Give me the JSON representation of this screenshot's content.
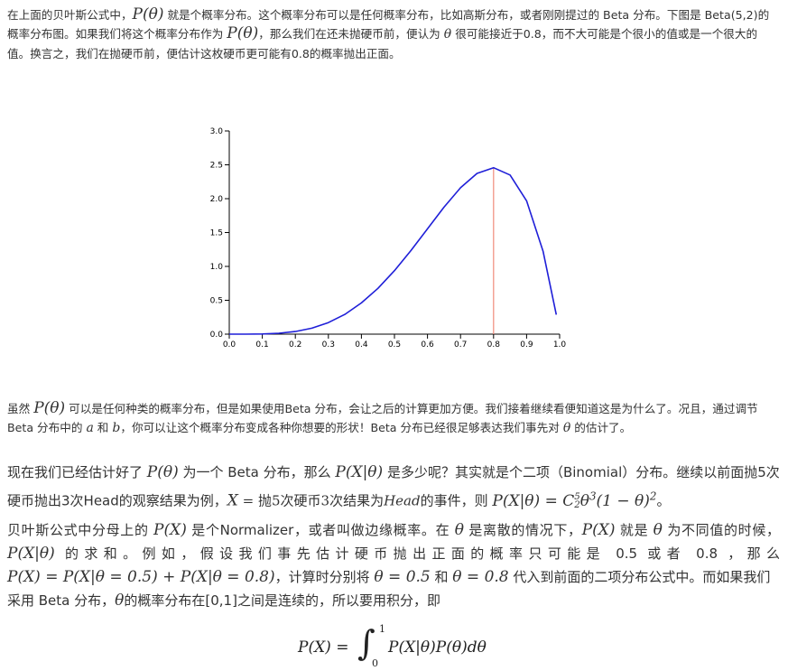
{
  "para1": {
    "a": "在上面的贝叶斯公式中，",
    "m1": "P(θ)",
    "b": " 就是个概率分布。这个概率分布可以是任何概率分布，比如高斯分布，或者刚刚提过的 Beta 分布。下图是 Beta(5,2)的概率分布图。如果我们将这个概率分布作为 ",
    "m2": "P(θ)",
    "c": "，那么我们在还未抛硬币前，便认为 ",
    "m3": "θ",
    "d": " 很可能接近于0.8，而不大可能是个很小的值或是一个很大的值。换言之，我们在抛硬币前，便估计这枚硬币更可能有0.8的概率抛出正面。"
  },
  "chart_data": {
    "type": "line",
    "series": [
      {
        "x": [
          0.0,
          0.05,
          0.1,
          0.15,
          0.2,
          0.25,
          0.3,
          0.35,
          0.4,
          0.45,
          0.5,
          0.55,
          0.6,
          0.65,
          0.7,
          0.75,
          0.8,
          0.85,
          0.9,
          0.95,
          0.99
        ],
        "values": [
          0.0,
          0.0002,
          0.0027,
          0.0127,
          0.0384,
          0.0879,
          0.1701,
          0.2926,
          0.4608,
          0.6766,
          0.9375,
          1.2353,
          1.5552,
          1.8743,
          2.1609,
          2.373,
          2.4576,
          2.3489,
          1.9683,
          1.2217,
          0.2882
        ],
        "color": "#1f1fd8"
      }
    ],
    "marker_line": {
      "x": 0.8,
      "y": 2.4576,
      "color": "#f08a7a"
    },
    "xlim": [
      0.0,
      1.0
    ],
    "ylim": [
      0.0,
      3.0
    ],
    "x_ticks": [
      "0.0",
      "0.1",
      "0.2",
      "0.3",
      "0.4",
      "0.5",
      "0.6",
      "0.7",
      "0.8",
      "0.9",
      "1.0"
    ],
    "y_ticks": [
      "0.0",
      "0.5",
      "1.0",
      "1.5",
      "2.0",
      "2.5",
      "3.0"
    ],
    "grid": false
  },
  "para2": {
    "a": "虽然 ",
    "m1": "P(θ)",
    "b": " 可以是任何种类的概率分布，但是如果使用Beta 分布，会让之后的计算更加方便。我们接着继续看便知道这是为什么了。况且，通过调节 Beta 分布中的 ",
    "m2": "a",
    "c": " 和 ",
    "m3": "b",
    "d": "，你可以让这个概率分布变成各种你想要的形状！Beta 分布已经很足够表达我们事先对 ",
    "m4": "θ",
    "e": " 的估计了。"
  },
  "para3": {
    "a": "现在我们已经估计好了 ",
    "m1": "P(θ)",
    "b": " 为一个 Beta 分布，那么 ",
    "m2": "P(X|θ)",
    "c": " 是多少呢？其实就是个二项（Binomial）分布。继续以前面抛5次硬币抛出3次Head的观察结果为例，",
    "m3": "X",
    "m3b": " = 抛5次硬币3次结果为",
    "m3c": "Head",
    "m3d": "的事件",
    "d": "，则 ",
    "m4": "P(X|θ) = C",
    "m4sup": "5",
    "m4sub": "2",
    "m4b": "θ",
    "m4c": "3",
    "m4d": "(1 − θ)",
    "m4e": "2",
    "e": "。"
  },
  "para4": {
    "a": "贝叶斯公式中分母上的 ",
    "m1": "P(X)",
    "b": " 是个Normalizer，或者叫做边缘概率。在 ",
    "m2": "θ",
    "c": " 是离散的情况下，",
    "m3": "P(X)",
    "d": " 就是 ",
    "m4": "θ",
    "e": " 为不同值的时候，",
    "m5": "P(X|θ)",
    "f": " 的求和。例如，假设我们事先估计硬币抛出正面的概率只可能是 0.5 或者 0.8 ，那么",
    "m6": "P(X) = P(X|θ = 0.5) + P(X|θ = 0.8)",
    "g": "，计算时分别将 ",
    "m7": "θ = 0.5",
    "h": " 和 ",
    "m8": "θ = 0.8",
    "i": " 代入到前面的二项分布公式中。而如果我们采用 Beta 分布，",
    "m9": "θ",
    "j": "的概率分布在[0,1]之间是连续的，所以要用积分，即"
  },
  "formula": {
    "lhs": "P(X) = ",
    "int": "∫",
    "upper": "1",
    "lower": "0",
    "rhs": "P(X|θ)P(θ)dθ"
  }
}
